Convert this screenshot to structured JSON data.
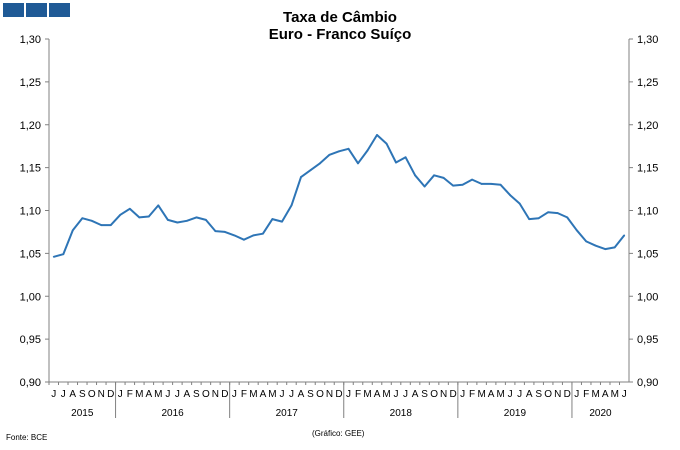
{
  "chart_data": {
    "type": "line",
    "title": "Taxa de Câmbio",
    "subtitle": "Euro - Franco Suíço",
    "xlabel": "",
    "ylabel": "",
    "ylim": [
      0.9,
      1.3
    ],
    "yticks": [
      "0,90",
      "0,95",
      "1,00",
      "1,05",
      "1,10",
      "1,15",
      "1,20",
      "1,25",
      "1,30"
    ],
    "grid": false,
    "legend": "none",
    "month_labels": [
      "J",
      "J",
      "A",
      "S",
      "O",
      "N",
      "D",
      "J",
      "F",
      "M",
      "A",
      "M",
      "J",
      "J",
      "A",
      "S",
      "O",
      "N",
      "D",
      "J",
      "F",
      "M",
      "A",
      "M",
      "J",
      "J",
      "A",
      "S",
      "O",
      "N",
      "D",
      "J",
      "F",
      "M",
      "A",
      "M",
      "J",
      "J",
      "A",
      "S",
      "O",
      "N",
      "D",
      "J",
      "F",
      "M",
      "A",
      "M",
      "J",
      "J",
      "A",
      "S",
      "O",
      "N",
      "D",
      "J",
      "F",
      "M",
      "A",
      "M",
      "J"
    ],
    "years": [
      {
        "label": "2015",
        "start": 0,
        "count": 7
      },
      {
        "label": "2016",
        "start": 7,
        "count": 12
      },
      {
        "label": "2017",
        "start": 19,
        "count": 12
      },
      {
        "label": "2018",
        "start": 31,
        "count": 12
      },
      {
        "label": "2019",
        "start": 43,
        "count": 12
      },
      {
        "label": "2020",
        "start": 55,
        "count": 6
      }
    ],
    "series": [
      {
        "color": "#2e75b6",
        "values": [
          1.046,
          1.049,
          1.077,
          1.091,
          1.088,
          1.083,
          1.083,
          1.095,
          1.102,
          1.092,
          1.093,
          1.106,
          1.089,
          1.086,
          1.088,
          1.092,
          1.089,
          1.076,
          1.075,
          1.071,
          1.066,
          1.071,
          1.073,
          1.09,
          1.087,
          1.106,
          1.139,
          1.147,
          1.155,
          1.165,
          1.169,
          1.172,
          1.155,
          1.17,
          1.188,
          1.178,
          1.156,
          1.162,
          1.141,
          1.128,
          1.141,
          1.138,
          1.129,
          1.13,
          1.136,
          1.131,
          1.131,
          1.13,
          1.118,
          1.108,
          1.09,
          1.091,
          1.098,
          1.097,
          1.092,
          1.077,
          1.064,
          1.059,
          1.055,
          1.057,
          1.071
        ]
      }
    ]
  },
  "footer": {
    "source": "Fonte: BCE",
    "credit": "(Gráfico: GEE)"
  }
}
